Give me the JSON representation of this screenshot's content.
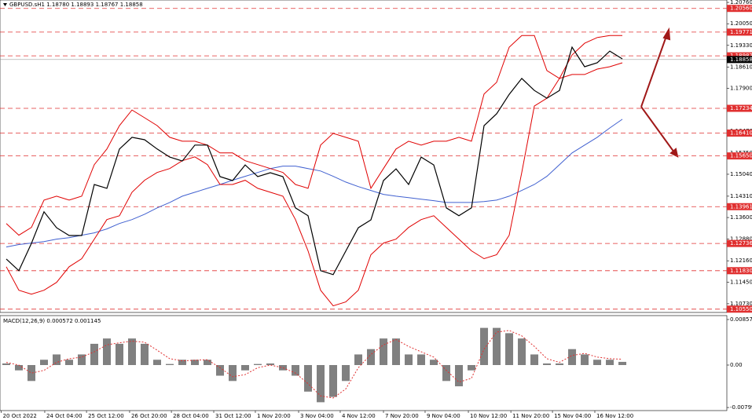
{
  "chart_data": [
    {
      "type": "line",
      "title": "GBPUSD.sH1  1.18780 1.18893 1.18767 1.18858",
      "xlim": [
        -0.5,
        57.31
      ],
      "xticks": [
        {
          "value": -0.4,
          "label": "20 Oct 2022"
        },
        {
          "value": 3.06,
          "label": "24 Oct 04:00"
        },
        {
          "value": 6.38,
          "label": "25 Oct 12:00"
        },
        {
          "value": 9.81,
          "label": "26 Oct 20:00"
        },
        {
          "value": 13.13,
          "label": "28 Oct 04:00"
        },
        {
          "value": 16.5,
          "label": "31 Oct 12:00"
        },
        {
          "value": 19.81,
          "label": "1 Nov 20:00"
        },
        {
          "value": 23.25,
          "label": "3 Nov 04:00"
        },
        {
          "value": 26.56,
          "label": "4 Nov 12:00"
        },
        {
          "value": 30,
          "label": "7 Nov 20:00"
        },
        {
          "value": 33.31,
          "label": "9 Nov 04:00"
        },
        {
          "value": 36.75,
          "label": "10 Nov 12:00"
        },
        {
          "value": 40.13,
          "label": "11 Nov 20:00"
        },
        {
          "value": 43.44,
          "label": "15 Nov 04:00"
        },
        {
          "value": 46.81,
          "label": "16 Nov 12:00"
        }
      ],
      "ylim": [
        1.1044,
        1.2084
      ],
      "yticks": [
        {
          "value": 1.2076,
          "label": "1.20760"
        },
        {
          "value": 1.2005,
          "label": "1.20050"
        },
        {
          "value": 1.1933,
          "label": "1.19330"
        },
        {
          "value": 1.1861,
          "label": "1.18610"
        },
        {
          "value": 1.179,
          "label": "1.17900"
        },
        {
          "value": 1.1718,
          "label": "1.17180"
        },
        {
          "value": 1.1647,
          "label": "1.16470"
        },
        {
          "value": 1.1575,
          "label": "1.15750"
        },
        {
          "value": 1.1504,
          "label": "1.15040"
        },
        {
          "value": 1.1431,
          "label": "1.14310"
        },
        {
          "value": 1.136,
          "label": "1.13600"
        },
        {
          "value": 1.1288,
          "label": "1.12880"
        },
        {
          "value": 1.1216,
          "label": "1.12160"
        },
        {
          "value": 1.1145,
          "label": "1.11450"
        },
        {
          "value": 1.1073,
          "label": "1.10730"
        }
      ],
      "levels": [
        {
          "value": 1.2056,
          "label": "1.20560"
        },
        {
          "value": 1.19771,
          "label": "1.19771"
        },
        {
          "value": 1.18982,
          "label": "1.18982"
        },
        {
          "value": 1.17234,
          "label": "1.17234"
        },
        {
          "value": 1.1641,
          "label": "1.16410"
        },
        {
          "value": 1.1565,
          "label": "1.15650"
        },
        {
          "value": 1.13961,
          "label": "1.13961"
        },
        {
          "value": 1.12736,
          "label": "1.12736"
        },
        {
          "value": 1.1183,
          "label": "1.11830"
        },
        {
          "value": 1.1055,
          "label": "1.10550"
        }
      ],
      "level_color": "#e03030",
      "last": {
        "value": 1.18858,
        "label": "1.18858"
      },
      "series": [
        {
          "color": "#000000",
          "values": [
            1.1222,
            1.1183,
            1.1274,
            1.1379,
            1.1326,
            1.13,
            1.13,
            1.147,
            1.1457,
            1.1588,
            1.1627,
            1.1619,
            1.1588,
            1.1561,
            1.1548,
            1.1601,
            1.1601,
            1.1496,
            1.1483,
            1.1535,
            1.1496,
            1.1509,
            1.1496,
            1.1392,
            1.1366,
            1.1183,
            1.117,
            1.1248,
            1.1326,
            1.1352,
            1.1483,
            1.1522,
            1.147,
            1.1561,
            1.1535,
            1.1392,
            1.1366,
            1.1392,
            1.1666,
            1.1705,
            1.177,
            1.1823,
            1.1783,
            1.1757,
            1.1783,
            1.1927,
            1.1862,
            1.1875,
            1.1914,
            1.1888
          ]
        },
        {
          "color": "#e00000",
          "values": [
            1.134,
            1.1301,
            1.1327,
            1.1418,
            1.1431,
            1.1418,
            1.1431,
            1.1536,
            1.1588,
            1.1666,
            1.1718,
            1.1692,
            1.1666,
            1.1627,
            1.1614,
            1.1614,
            1.1601,
            1.1575,
            1.1575,
            1.1549,
            1.1536,
            1.1523,
            1.151,
            1.147,
            1.1457,
            1.1601,
            1.164,
            1.1627,
            1.1614,
            1.1457,
            1.1523,
            1.1588,
            1.1614,
            1.1601,
            1.1614,
            1.1614,
            1.1627,
            1.1614,
            1.1771,
            1.181,
            1.1927,
            1.1966,
            1.1966,
            1.1849,
            1.1823,
            1.1901,
            1.194,
            1.1959,
            1.1966,
            1.1966
          ]
        },
        {
          "color": "#e00000",
          "values": [
            1.1196,
            1.1118,
            1.1105,
            1.1118,
            1.1144,
            1.1196,
            1.1223,
            1.1288,
            1.1353,
            1.1366,
            1.1444,
            1.1484,
            1.151,
            1.1523,
            1.1549,
            1.1562,
            1.1536,
            1.147,
            1.147,
            1.1484,
            1.1457,
            1.1444,
            1.1431,
            1.1353,
            1.1249,
            1.1118,
            1.1066,
            1.1079,
            1.1118,
            1.1236,
            1.1275,
            1.1288,
            1.1327,
            1.1353,
            1.1366,
            1.1327,
            1.1288,
            1.1249,
            1.1223,
            1.1236,
            1.1301,
            1.151,
            1.1731,
            1.1757,
            1.1823,
            1.1836,
            1.1836,
            1.1854,
            1.1862,
            1.1875
          ]
        },
        {
          "color": "#4060d0",
          "values": [
            1.1262,
            1.127,
            1.1275,
            1.128,
            1.1288,
            1.1293,
            1.1301,
            1.1309,
            1.1322,
            1.134,
            1.1353,
            1.1371,
            1.1392,
            1.141,
            1.1431,
            1.1444,
            1.1457,
            1.147,
            1.1484,
            1.1497,
            1.151,
            1.1523,
            1.1531,
            1.1531,
            1.1523,
            1.1515,
            1.1497,
            1.1478,
            1.1463,
            1.145,
            1.1437,
            1.1431,
            1.1426,
            1.1421,
            1.1416,
            1.141,
            1.141,
            1.141,
            1.1413,
            1.1418,
            1.1431,
            1.145,
            1.147,
            1.1497,
            1.1536,
            1.1575,
            1.1601,
            1.1627,
            1.1658,
            1.1687
          ]
        }
      ]
    },
    {
      "type": "bar",
      "title": "MACD(12,26,9) 0.000572 0.001145",
      "ylim": [
        -0.00857,
        0.00931
      ],
      "yticks": [
        0.008572,
        {
          "value": 0,
          "label": "0.00"
        },
        -0.007991
      ],
      "color": "#808080",
      "values": [
        0.0003,
        -0.001,
        -0.003,
        0.001,
        0.002,
        0.001,
        0.002,
        0.004,
        0.005,
        0.004,
        0.005,
        0.004,
        0.001,
        0.0002,
        0.001,
        0.001,
        0.001,
        -0.002,
        -0.003,
        -0.001,
        0.0002,
        0.0003,
        -0.001,
        -0.002,
        -0.005,
        -0.007,
        -0.006,
        -0.003,
        0.002,
        0.003,
        0.005,
        0.005,
        0.002,
        0.002,
        0.001,
        -0.003,
        -0.004,
        -0.001,
        0.007,
        0.007,
        0.006,
        0.005,
        0.002,
        0.0003,
        0.0003,
        0.003,
        0.002,
        0.001,
        0.001,
        0.0006
      ],
      "signal": {
        "color": "#e03030",
        "values": [
          0.0005,
          0.0,
          -0.0015,
          -0.001,
          0.0005,
          0.0012,
          0.0015,
          0.0025,
          0.0038,
          0.0042,
          0.0045,
          0.0043,
          0.0028,
          0.0012,
          0.0008,
          0.0009,
          0.001,
          -0.0005,
          -0.0022,
          -0.0018,
          -0.0005,
          0.0,
          -0.0005,
          -0.0015,
          -0.0035,
          -0.0058,
          -0.0062,
          -0.0045,
          -0.0005,
          0.002,
          0.0038,
          0.0048,
          0.0035,
          0.0025,
          0.0015,
          -0.001,
          -0.0032,
          -0.0025,
          0.003,
          0.0062,
          0.0065,
          0.0055,
          0.0035,
          0.0012,
          0.0005,
          0.0018,
          0.0022,
          0.0015,
          0.0012,
          0.0011
        ]
      }
    }
  ]
}
